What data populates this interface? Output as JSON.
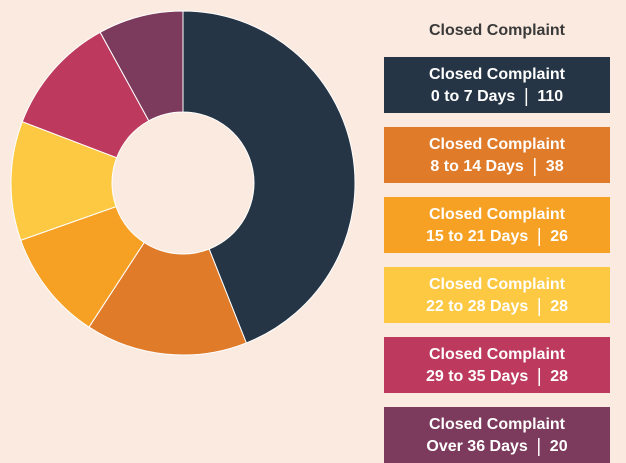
{
  "chart_data": {
    "type": "donut",
    "title": "Closed Complaint",
    "series_name": "Closed Complaint",
    "categories": [
      "0 to 7 Days",
      "8 to 14 Days",
      "15 to 21 Days",
      "22 to 28 Days",
      "29 to 35 Days",
      "Over 36 Days"
    ],
    "values": [
      110,
      38,
      26,
      28,
      28,
      20
    ],
    "colors": [
      "#253545",
      "#df7b29",
      "#f6a124",
      "#fdc943",
      "#bd3a5e",
      "#7c3a5c"
    ]
  }
}
